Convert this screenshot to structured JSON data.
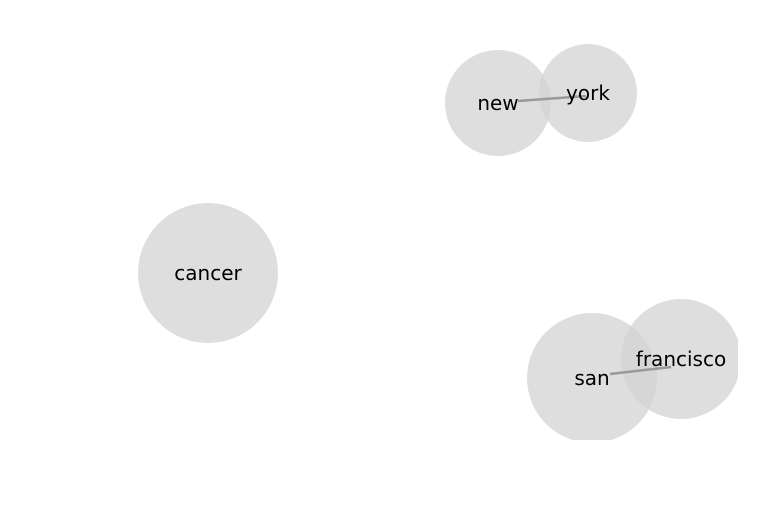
{
  "graph": {
    "nodes": [
      {
        "id": "new",
        "label": "new"
      },
      {
        "id": "york",
        "label": "york"
      },
      {
        "id": "cancer",
        "label": "cancer"
      },
      {
        "id": "san",
        "label": "san"
      },
      {
        "id": "francisco",
        "label": "francisco"
      }
    ],
    "edges": [
      {
        "source": "new",
        "target": "york"
      },
      {
        "source": "san",
        "target": "francisco"
      }
    ],
    "colors": {
      "node_fill": "#d3d3d3",
      "edge_stroke": "#999999",
      "label": "#000000"
    }
  }
}
